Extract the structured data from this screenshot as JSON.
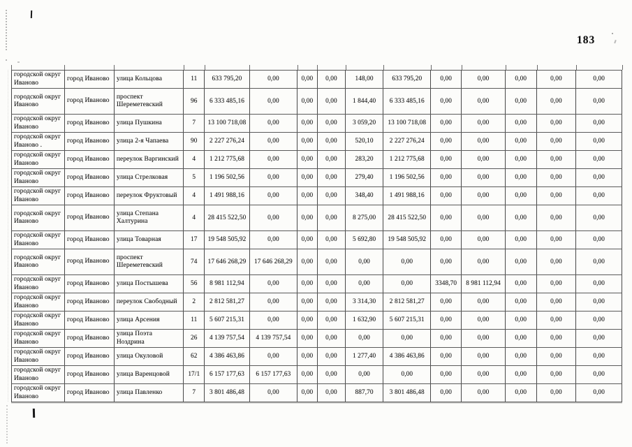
{
  "page": {
    "number": "183"
  },
  "table": {
    "columns": [
      {
        "name": "municipality",
        "width": 8.7,
        "align": "left"
      },
      {
        "name": "city",
        "width": 8.1,
        "align": "left"
      },
      {
        "name": "street",
        "width": 11.4,
        "align": "left"
      },
      {
        "name": "house-number",
        "width": 3.4,
        "align": "center"
      },
      {
        "name": "value-1",
        "width": 7.4,
        "align": "center"
      },
      {
        "name": "value-2",
        "width": 7.8,
        "align": "center"
      },
      {
        "name": "value-3",
        "width": 3.3,
        "align": "center"
      },
      {
        "name": "value-4",
        "width": 4.6,
        "align": "center"
      },
      {
        "name": "value-5",
        "width": 6.2,
        "align": "center"
      },
      {
        "name": "value-6",
        "width": 7.8,
        "align": "center"
      },
      {
        "name": "value-7",
        "width": 5.0,
        "align": "center"
      },
      {
        "name": "value-8",
        "width": 7.2,
        "align": "center"
      },
      {
        "name": "value-9",
        "width": 5.1,
        "align": "center"
      },
      {
        "name": "value-10",
        "width": 6.5,
        "align": "center"
      },
      {
        "name": "value-11",
        "width": 7.5,
        "align": "center"
      }
    ],
    "rows": [
      {
        "tall": false,
        "cells": [
          "городской округ Иваново",
          "город Иваново",
          "улица Кольцова",
          "11",
          "633 795,20",
          "0,00",
          "0,00",
          "0,00",
          "148,00",
          "633 795,20",
          "0,00",
          "0,00",
          "0,00",
          "0,00",
          "0,00"
        ]
      },
      {
        "tall": true,
        "cells": [
          "городской округ Иваново",
          "город Иваново",
          "проспект Шереметевский",
          "96",
          "6 333 485,16",
          "0,00",
          "0,00",
          "0,00",
          "1 844,40",
          "6 333 485,16",
          "0,00",
          "0,00",
          "0,00",
          "0,00",
          "0,00"
        ]
      },
      {
        "tall": false,
        "cells": [
          "городской округ Иваново",
          "город Иваново",
          "улица Пушкина",
          "7",
          "13 100 718,08",
          "0,00",
          "0,00",
          "0,00",
          "3 059,20",
          "13 100 718,08",
          "0,00",
          "0,00",
          "0,00",
          "0,00",
          "0,00"
        ]
      },
      {
        "tall": false,
        "cells": [
          "городской округ Иваново .",
          "город Иваново",
          "улица 2-я Чапаева",
          "90",
          "2 227 276,24",
          "0,00",
          "0,00",
          "0,00",
          "520,10",
          "2 227 276,24",
          "0,00",
          "0,00",
          "0,00",
          "0,00",
          "0,00"
        ]
      },
      {
        "tall": false,
        "cells": [
          "городской округ Иваново",
          "город Иваново",
          "переулок Варгинский",
          "4",
          "1 212 775,68",
          "0,00",
          "0,00",
          "0,00",
          "283,20",
          "1 212 775,68",
          "0,00",
          "0,00",
          "0,00",
          "0,00",
          "0,00"
        ]
      },
      {
        "tall": false,
        "cells": [
          "городской округ Иваново",
          "город Иваново",
          "улица Стрелковая",
          "5",
          "1 196 502,56",
          "0,00",
          "0,00",
          "0,00",
          "279,40",
          "1 196 502,56",
          "0,00",
          "0,00",
          "0,00",
          "0,00",
          "0,00"
        ]
      },
      {
        "tall": false,
        "cells": [
          "городской округ Иваново",
          "город Иваново",
          "переулок Фруктовый",
          "4",
          "1 491 988,16",
          "0,00",
          "0,00",
          "0,00",
          "348,40",
          "1 491 988,16",
          "0,00",
          "0,00",
          "0,00",
          "0,00",
          "0,00"
        ]
      },
      {
        "tall": true,
        "cells": [
          "городской округ Иваново",
          "город Иваново",
          "улица Степана Халтурина",
          "4",
          "28 415 522,50",
          "0,00",
          "0,00",
          "0,00",
          "8 275,00",
          "28 415 522,50",
          "0,00",
          "0,00",
          "0,00",
          "0,00",
          "0,00"
        ]
      },
      {
        "tall": false,
        "cells": [
          "городской округ Иваново",
          "город Иваново",
          "улица Товарная",
          "17",
          "19 548 505,92",
          "0,00",
          "0,00",
          "0,00",
          "5 692,80",
          "19 548 505,92",
          "0,00",
          "0,00",
          "0,00",
          "0,00",
          "0,00"
        ]
      },
      {
        "tall": true,
        "cells": [
          "городской округ Иваново",
          "город Иваново",
          "проспект Шереметевский",
          "74",
          "17 646 268,29",
          "17 646 268,29",
          "0,00",
          "0,00",
          "0,00",
          "0,00",
          "0,00",
          "0,00",
          "0,00",
          "0,00",
          "0,00"
        ]
      },
      {
        "tall": false,
        "cells": [
          "городской округ Иваново",
          "город Иваново",
          "улица Постышева",
          "56",
          "8 981 112,94",
          "0,00",
          "0,00",
          "0,00",
          "0,00",
          "0,00",
          "3348,70",
          "8 981 112,94",
          "0,00",
          "0,00",
          "0,00"
        ]
      },
      {
        "tall": false,
        "cells": [
          "городской округ Иваново",
          "город Иваново",
          "переулок Свободный",
          "2",
          "2 812 581,27",
          "0,00",
          "0,00",
          "0,00",
          "3 314,30",
          "2 812 581,27",
          "0,00",
          "0,00",
          "0,00",
          "0,00",
          "0,00"
        ]
      },
      {
        "tall": false,
        "cells": [
          "городской округ Иваново",
          "город Иваново",
          "улица Арсения",
          "11",
          "5 607 215,31",
          "0,00",
          "0,00",
          "0,00",
          "1 632,90",
          "5 607 215,31",
          "0,00",
          "0,00",
          "0,00",
          "0,00",
          "0,00"
        ]
      },
      {
        "tall": false,
        "cells": [
          "городской округ Иваново",
          "город Иваново",
          "улица Поэта Ноздрина",
          "26",
          "4 139 757,54",
          "4 139 757,54",
          "0,00",
          "0,00",
          "0,00",
          "0,00",
          "0,00",
          "0,00",
          "0,00",
          "0,00",
          "0,00"
        ]
      },
      {
        "tall": false,
        "cells": [
          "городской округ Иваново",
          "город Иваново",
          "улица Окуловой",
          "62",
          "4 386 463,86",
          "0,00",
          "0,00",
          "0,00",
          "1 277,40",
          "4 386 463,86",
          "0,00",
          "0,00",
          "0,00",
          "0,00",
          "0,00"
        ]
      },
      {
        "tall": false,
        "cells": [
          "городской округ Иваново",
          "город Иваново",
          "улица Варенцовой",
          "17/1",
          "6 157 177,63",
          "6 157 177,63",
          "0,00",
          "0,00",
          "0,00",
          "0,00",
          "0,00",
          "0,00",
          "0,00",
          "0,00",
          "0,00"
        ]
      },
      {
        "tall": false,
        "cells": [
          "городской округ Иваново",
          "город Иваново",
          "улица Павленко",
          "7",
          "3 801 486,48",
          "0,00",
          "0,00",
          "0,00",
          "887,70",
          "3 801 486,48",
          "0,00",
          "0,00",
          "0,00",
          "0,00",
          "0,00"
        ]
      }
    ]
  }
}
